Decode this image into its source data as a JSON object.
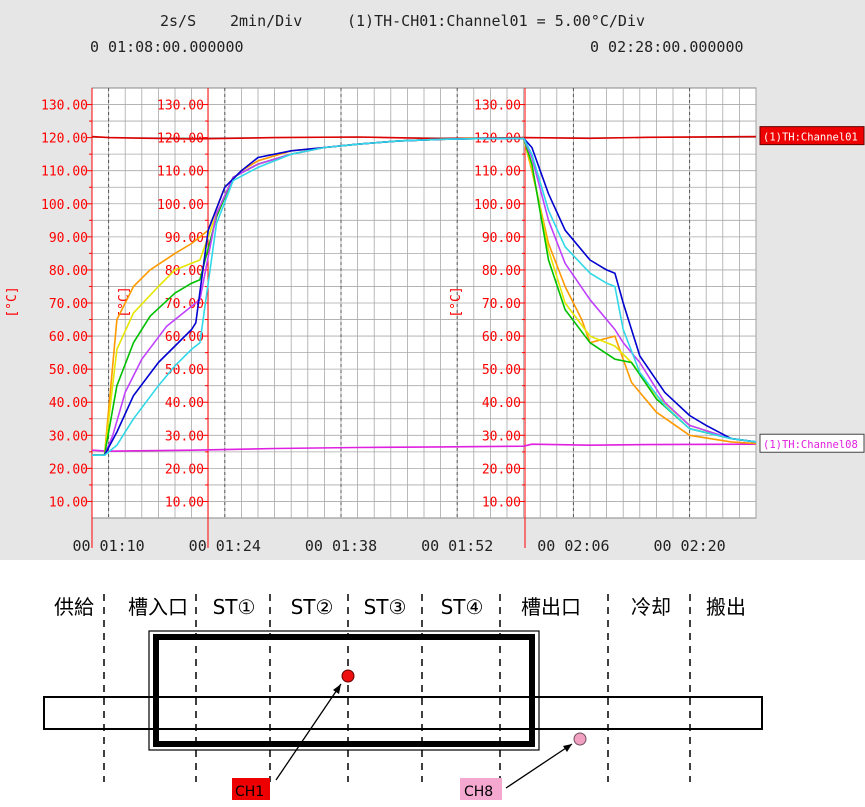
{
  "header": {
    "line1_left": "2s/S",
    "line1_mid": "2min/Div",
    "line1_right": "(1)TH-CH01:Channel01 = 5.00°C/Div",
    "start_time": "0 01:08:00.000000",
    "end_time": "0 02:28:00.000000"
  },
  "colors": {
    "panel_bg": "#e6e6e6",
    "grid": "#a8a8a8",
    "axis_red": "#ff0000",
    "ch1": "#dd0000",
    "ch8": "#e020e0",
    "orange": "#ff9a00",
    "yellow": "#e6e600",
    "green": "#00c000",
    "violet": "#c040ff",
    "blue": "#0000d0",
    "cyan": "#30d8e8"
  },
  "chart_data": {
    "type": "line",
    "xlabel": "",
    "ylabel": "[°C]",
    "xlim_minutes": [
      68,
      148
    ],
    "ylim": [
      5,
      135
    ],
    "y_ticks": [
      "130.00",
      "120.00",
      "110.00",
      "100.00",
      "90.00",
      "80.00",
      "70.00",
      "60.00",
      "50.00",
      "40.00",
      "30.00",
      "20.00",
      "10.00"
    ],
    "x_tick_labels": [
      "00 01:10",
      "00 01:24",
      "00 01:38",
      "00 01:52",
      "00 02:06",
      "00 02:20"
    ],
    "x_tick_minutes": [
      70,
      84,
      98,
      112,
      126,
      140
    ],
    "legend_labels": [
      "(1)TH:Channel01",
      "(1)TH:Channel08"
    ],
    "series": [
      {
        "name": "(1)TH:Channel01",
        "color": "#dd0000",
        "x": [
          68,
          70,
          80,
          90,
          100,
          110,
          120,
          128,
          135,
          148
        ],
        "y": [
          120.3,
          120.0,
          119.6,
          120.0,
          120.2,
          119.7,
          120.0,
          119.8,
          120.1,
          120.3
        ]
      },
      {
        "name": "(1)TH:Channel08",
        "color": "#e020e0",
        "x": [
          68,
          70,
          80,
          90,
          100,
          110,
          120,
          121,
          128,
          135,
          148
        ],
        "y": [
          25.5,
          25.2,
          25.5,
          26.0,
          26.3,
          26.5,
          26.7,
          27.3,
          27.0,
          27.2,
          27.3
        ]
      },
      {
        "color": "#ff9a00",
        "x": [
          68,
          69.5,
          71,
          73,
          75,
          78,
          80,
          82,
          84,
          86,
          88,
          92,
          96,
          100,
          105,
          110,
          114,
          120,
          121,
          123,
          125,
          127,
          128,
          131,
          133,
          136,
          140,
          145,
          148
        ],
        "y": [
          24,
          24,
          65,
          75,
          80,
          85,
          88,
          92,
          105,
          110,
          113,
          116,
          117,
          118,
          119,
          119.5,
          119.8,
          119.8,
          110,
          88,
          75,
          65,
          58,
          60,
          46,
          37,
          30,
          28,
          27.5
        ]
      },
      {
        "color": "#e6e600",
        "x": [
          68,
          69.5,
          71,
          73,
          76,
          78,
          80,
          81,
          83,
          85,
          88,
          92,
          96,
          100,
          105,
          110,
          115,
          120,
          121,
          123,
          125,
          128,
          131,
          133,
          136,
          140,
          145,
          148
        ],
        "y": [
          24,
          24,
          56,
          67,
          75,
          80,
          82,
          83,
          97,
          108,
          112,
          115,
          117,
          118,
          119,
          119.5,
          119.7,
          119.8,
          111,
          86,
          70,
          60,
          57,
          52,
          42,
          33,
          29,
          28
        ]
      },
      {
        "color": "#00c000",
        "x": [
          68,
          69.5,
          71,
          73,
          75,
          78,
          80,
          81,
          83,
          85,
          88,
          92,
          96,
          100,
          105,
          110,
          115,
          120,
          121,
          123,
          125,
          128,
          131,
          133,
          136,
          140,
          145,
          148
        ],
        "y": [
          24,
          24,
          45,
          58,
          66,
          73,
          76,
          77,
          96,
          108,
          112,
          115,
          117,
          118,
          119,
          119.5,
          119.7,
          119.8,
          112,
          83,
          68,
          58,
          53,
          52,
          41,
          32,
          29,
          28
        ]
      },
      {
        "color": "#c040ff",
        "x": [
          68,
          69.5,
          70.5,
          72,
          74,
          77,
          80,
          81,
          83,
          85,
          88,
          92,
          96,
          100,
          105,
          110,
          115,
          120,
          121,
          123,
          125,
          128,
          131,
          132,
          134,
          137,
          140,
          145,
          148
        ],
        "y": [
          24,
          24,
          30,
          43,
          53,
          63,
          69,
          71,
          97,
          108,
          112,
          115,
          117,
          118,
          119,
          119.5,
          119.7,
          119.8,
          114,
          95,
          82,
          71,
          62,
          58,
          52,
          40,
          33,
          29,
          28
        ]
      },
      {
        "color": "#0000d0",
        "x": [
          68,
          69.5,
          71,
          73,
          76,
          78,
          80,
          80.5,
          82,
          84,
          86,
          88,
          92,
          96,
          100,
          105,
          110,
          115,
          120,
          121,
          123,
          125,
          128,
          130,
          131,
          132,
          134,
          137,
          140,
          142,
          145,
          148
        ],
        "y": [
          24,
          24,
          31,
          42,
          52,
          57,
          62,
          64,
          92,
          105,
          110,
          114,
          116,
          117,
          118,
          119,
          119.5,
          119.7,
          119.8,
          117,
          103,
          92,
          83,
          80,
          79,
          70,
          54,
          43,
          36,
          33,
          29,
          28
        ]
      },
      {
        "color": "#30d8e8",
        "x": [
          68,
          69.5,
          71,
          73,
          76,
          78,
          80,
          81,
          83,
          85,
          88,
          92,
          96,
          100,
          105,
          110,
          115,
          120,
          121,
          123,
          125,
          128,
          130,
          131,
          132,
          134,
          137,
          140,
          145,
          148
        ],
        "y": [
          24,
          24,
          27,
          35,
          45,
          51,
          56,
          58,
          94,
          107,
          111,
          115,
          117,
          118,
          119,
          119.5,
          119.7,
          119.8,
          115,
          98,
          87,
          79,
          76,
          75,
          62,
          49,
          39,
          32,
          29,
          28
        ]
      }
    ]
  },
  "stages": [
    "供給",
    "槽入口",
    "ST①",
    "ST②",
    "ST③",
    "ST④",
    "槽出口",
    "冷却",
    "搬出"
  ],
  "channels": {
    "ch1_label": "CH1",
    "ch8_label": "CH8"
  }
}
